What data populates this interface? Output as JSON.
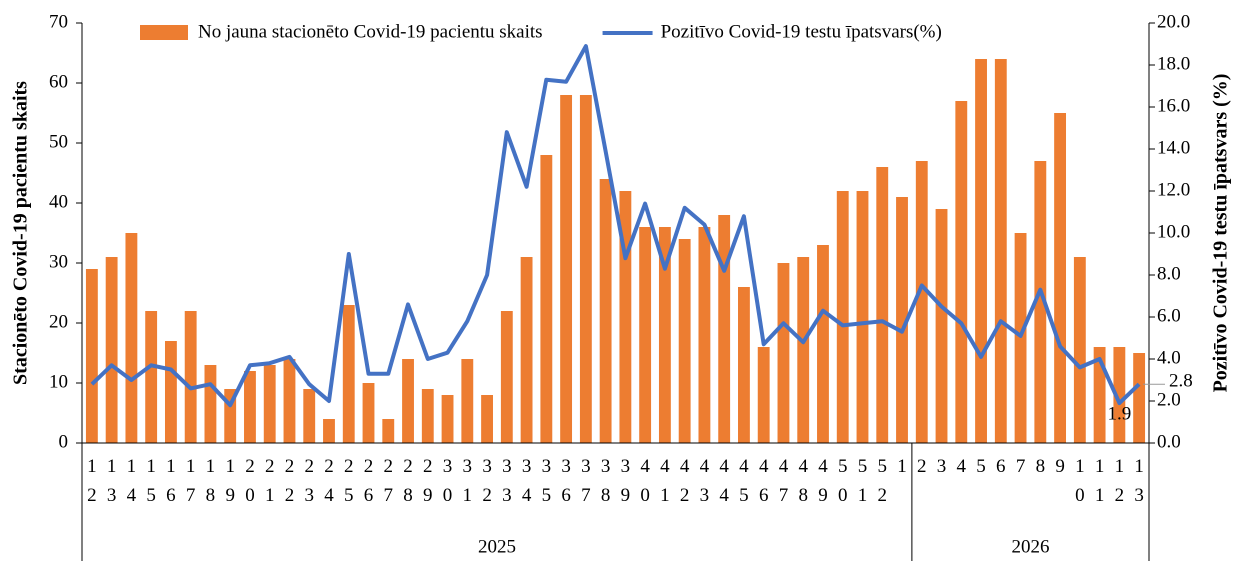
{
  "chart_data": {
    "type": "bar_line",
    "y_label": "Stacionēto Covid-19 pacientu skaits",
    "y2_label": "Pozitīvo Covid-19 testu īpatsvars (%)",
    "category_groups": [
      {
        "label": "2025",
        "categories": [
          "12",
          "13",
          "14",
          "15",
          "16",
          "17",
          "18",
          "19",
          "20",
          "21",
          "22",
          "23",
          "24",
          "25",
          "26",
          "27",
          "28",
          "29",
          "30",
          "31",
          "32",
          "33",
          "34",
          "35",
          "36",
          "37",
          "38",
          "39",
          "40",
          "41",
          "42",
          "43",
          "44",
          "45",
          "46",
          "47",
          "48",
          "49",
          "50",
          "51",
          "52",
          "1"
        ]
      },
      {
        "label": "2026",
        "categories": [
          "2",
          "3",
          "4",
          "5",
          "6",
          "7",
          "8",
          "9",
          "10",
          "11",
          "12",
          "13"
        ]
      }
    ],
    "series": [
      {
        "name": "No jauna stacionēto Covid-19 pacientu skaits",
        "type": "bar",
        "color": "#ed7d31",
        "values": [
          29,
          31,
          35,
          22,
          17,
          22,
          13,
          9,
          12,
          13,
          14,
          9,
          4,
          23,
          10,
          4,
          14,
          9,
          8,
          14,
          8,
          22,
          31,
          48,
          58,
          58,
          44,
          42,
          36,
          36,
          34,
          36,
          38,
          26,
          16,
          30,
          31,
          33,
          42,
          42,
          46,
          41,
          47,
          39,
          57,
          64,
          64,
          35,
          47,
          55,
          31,
          16,
          16,
          15
        ]
      },
      {
        "name": "Pozitīvo Covid-19 testu īpatsvars(%)",
        "type": "line",
        "axis": "y2",
        "color": "#4472c4",
        "values": [
          2.8,
          3.7,
          3.0,
          3.7,
          3.5,
          2.6,
          2.8,
          1.8,
          3.7,
          3.8,
          4.1,
          2.8,
          2.0,
          9.0,
          3.3,
          3.3,
          6.6,
          4.0,
          4.3,
          5.8,
          8.0,
          14.8,
          12.2,
          17.3,
          17.2,
          18.9,
          13.9,
          8.8,
          11.4,
          8.3,
          11.2,
          10.4,
          8.2,
          10.8,
          4.7,
          5.7,
          4.8,
          6.3,
          5.6,
          5.7,
          5.8,
          5.3,
          7.5,
          6.5,
          5.7,
          4.1,
          5.8,
          5.1,
          7.3,
          4.6,
          3.6,
          4.0,
          1.9,
          2.8
        ],
        "value_labels": [
          null,
          null,
          null,
          null,
          null,
          null,
          null,
          null,
          null,
          null,
          null,
          null,
          null,
          null,
          null,
          null,
          null,
          null,
          null,
          null,
          null,
          null,
          null,
          null,
          null,
          null,
          null,
          null,
          null,
          null,
          null,
          null,
          null,
          null,
          null,
          null,
          null,
          null,
          null,
          null,
          null,
          null,
          null,
          null,
          null,
          null,
          null,
          null,
          null,
          null,
          null,
          null,
          "1.9",
          "2.8"
        ]
      }
    ],
    "ylim": [
      0,
      70
    ],
    "yticks": [
      0,
      10,
      20,
      30,
      40,
      50,
      60,
      70
    ],
    "y2lim": [
      0,
      20
    ],
    "y2ticks": [
      {
        "value": 0,
        "label": "0.0"
      },
      {
        "value": 2,
        "label": "2.0"
      },
      {
        "value": 4,
        "label": "4.0"
      },
      {
        "value": 6,
        "label": "6.0"
      },
      {
        "value": 8,
        "label": "8.0"
      },
      {
        "value": 10,
        "label": "10.0"
      },
      {
        "value": 12,
        "label": "12.0"
      },
      {
        "value": 14,
        "label": "14.0"
      },
      {
        "value": 16,
        "label": "16.0"
      },
      {
        "value": 18,
        "label": "18.0"
      },
      {
        "value": 20,
        "label": "20.0"
      }
    ],
    "legend": "top"
  }
}
